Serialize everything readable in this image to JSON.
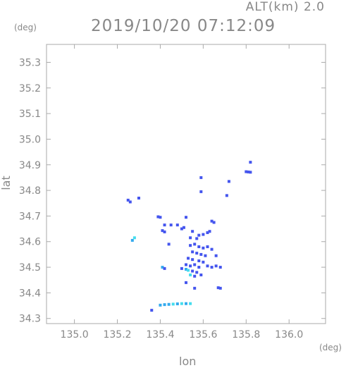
{
  "header": {
    "alt_label": "ALT(km) 2.0",
    "datetime": "2019/10/20 07:12:09",
    "y_unit": "(deg)",
    "x_unit": "(deg)"
  },
  "chart_data": {
    "type": "scatter",
    "title": "2019/10/20 07:12:09",
    "subtitle": "ALT(km) 2.0",
    "xlabel": "lon",
    "ylabel": "lat",
    "xlim": [
      134.87,
      136.17
    ],
    "ylim": [
      34.28,
      35.37
    ],
    "x_ticks": [
      "135.0",
      "135.2",
      "135.4",
      "135.6",
      "135.8",
      "136.0"
    ],
    "y_ticks": [
      "34.3",
      "34.4",
      "34.5",
      "34.6",
      "34.7",
      "34.8",
      "34.9",
      "35.0",
      "35.1",
      "35.2",
      "35.3"
    ],
    "grid": false,
    "colors": {
      "blue": "#4455ee",
      "light_blue": "#33aaee",
      "cyan": "#44ddee",
      "axis": "#aaaaaa"
    },
    "points": [
      {
        "x": 135.8,
        "y": 34.873,
        "c": "blue"
      },
      {
        "x": 135.81,
        "y": 34.872,
        "c": "blue"
      },
      {
        "x": 135.82,
        "y": 34.871,
        "c": "blue"
      },
      {
        "x": 135.82,
        "y": 34.91,
        "c": "blue"
      },
      {
        "x": 135.59,
        "y": 34.85,
        "c": "blue"
      },
      {
        "x": 135.25,
        "y": 34.762,
        "c": "blue"
      },
      {
        "x": 135.26,
        "y": 34.755,
        "c": "blue"
      },
      {
        "x": 135.3,
        "y": 34.77,
        "c": "blue"
      },
      {
        "x": 135.39,
        "y": 34.697,
        "c": "blue"
      },
      {
        "x": 135.4,
        "y": 34.695,
        "c": "blue"
      },
      {
        "x": 135.52,
        "y": 34.695,
        "c": "blue"
      },
      {
        "x": 135.64,
        "y": 34.68,
        "c": "blue"
      },
      {
        "x": 135.65,
        "y": 34.675,
        "c": "blue"
      },
      {
        "x": 135.42,
        "y": 34.665,
        "c": "blue"
      },
      {
        "x": 135.45,
        "y": 34.665,
        "c": "blue"
      },
      {
        "x": 135.48,
        "y": 34.665,
        "c": "blue"
      },
      {
        "x": 135.41,
        "y": 34.643,
        "c": "blue"
      },
      {
        "x": 135.42,
        "y": 34.638,
        "c": "blue"
      },
      {
        "x": 135.5,
        "y": 34.65,
        "c": "blue"
      },
      {
        "x": 135.51,
        "y": 34.655,
        "c": "blue"
      },
      {
        "x": 135.55,
        "y": 34.64,
        "c": "blue"
      },
      {
        "x": 135.58,
        "y": 34.625,
        "c": "blue"
      },
      {
        "x": 135.6,
        "y": 34.628,
        "c": "blue"
      },
      {
        "x": 135.62,
        "y": 34.635,
        "c": "blue"
      },
      {
        "x": 135.63,
        "y": 34.64,
        "c": "blue"
      },
      {
        "x": 135.54,
        "y": 34.615,
        "c": "blue"
      },
      {
        "x": 135.57,
        "y": 34.612,
        "c": "blue"
      },
      {
        "x": 135.27,
        "y": 34.605,
        "c": "light_blue"
      },
      {
        "x": 135.28,
        "y": 34.615,
        "c": "cyan"
      },
      {
        "x": 135.44,
        "y": 34.59,
        "c": "blue"
      },
      {
        "x": 135.54,
        "y": 34.585,
        "c": "blue"
      },
      {
        "x": 135.56,
        "y": 34.59,
        "c": "blue"
      },
      {
        "x": 135.58,
        "y": 34.58,
        "c": "blue"
      },
      {
        "x": 135.6,
        "y": 34.575,
        "c": "blue"
      },
      {
        "x": 135.62,
        "y": 34.58,
        "c": "blue"
      },
      {
        "x": 135.64,
        "y": 34.57,
        "c": "blue"
      },
      {
        "x": 135.55,
        "y": 34.56,
        "c": "blue"
      },
      {
        "x": 135.57,
        "y": 34.555,
        "c": "blue"
      },
      {
        "x": 135.59,
        "y": 34.55,
        "c": "blue"
      },
      {
        "x": 135.61,
        "y": 34.545,
        "c": "blue"
      },
      {
        "x": 135.66,
        "y": 34.545,
        "c": "blue"
      },
      {
        "x": 135.53,
        "y": 34.535,
        "c": "blue"
      },
      {
        "x": 135.55,
        "y": 34.53,
        "c": "blue"
      },
      {
        "x": 135.58,
        "y": 34.525,
        "c": "blue"
      },
      {
        "x": 135.6,
        "y": 34.52,
        "c": "blue"
      },
      {
        "x": 135.52,
        "y": 34.51,
        "c": "blue"
      },
      {
        "x": 135.54,
        "y": 34.505,
        "c": "blue"
      },
      {
        "x": 135.56,
        "y": 34.51,
        "c": "blue"
      },
      {
        "x": 135.58,
        "y": 34.5,
        "c": "blue"
      },
      {
        "x": 135.62,
        "y": 34.505,
        "c": "blue"
      },
      {
        "x": 135.64,
        "y": 34.5,
        "c": "blue"
      },
      {
        "x": 135.66,
        "y": 34.505,
        "c": "blue"
      },
      {
        "x": 135.68,
        "y": 34.5,
        "c": "blue"
      },
      {
        "x": 135.41,
        "y": 34.5,
        "c": "light_blue"
      },
      {
        "x": 135.42,
        "y": 34.495,
        "c": "blue"
      },
      {
        "x": 135.5,
        "y": 34.495,
        "c": "blue"
      },
      {
        "x": 135.52,
        "y": 34.492,
        "c": "light_blue"
      },
      {
        "x": 135.53,
        "y": 34.488,
        "c": "cyan"
      },
      {
        "x": 135.55,
        "y": 34.485,
        "c": "blue"
      },
      {
        "x": 135.57,
        "y": 34.48,
        "c": "blue"
      },
      {
        "x": 135.54,
        "y": 34.47,
        "c": "cyan"
      },
      {
        "x": 135.56,
        "y": 34.465,
        "c": "blue"
      },
      {
        "x": 135.59,
        "y": 34.47,
        "c": "blue"
      },
      {
        "x": 135.52,
        "y": 34.44,
        "c": "blue"
      },
      {
        "x": 135.56,
        "y": 34.418,
        "c": "blue"
      },
      {
        "x": 135.67,
        "y": 34.42,
        "c": "blue"
      },
      {
        "x": 135.68,
        "y": 34.418,
        "c": "blue"
      },
      {
        "x": 135.4,
        "y": 34.352,
        "c": "light_blue"
      },
      {
        "x": 135.42,
        "y": 34.354,
        "c": "light_blue"
      },
      {
        "x": 135.44,
        "y": 34.355,
        "c": "light_blue"
      },
      {
        "x": 135.46,
        "y": 34.356,
        "c": "cyan"
      },
      {
        "x": 135.48,
        "y": 34.357,
        "c": "light_blue"
      },
      {
        "x": 135.5,
        "y": 34.358,
        "c": "cyan"
      },
      {
        "x": 135.52,
        "y": 34.358,
        "c": "light_blue"
      },
      {
        "x": 135.54,
        "y": 34.358,
        "c": "cyan"
      },
      {
        "x": 135.36,
        "y": 34.332,
        "c": "blue"
      },
      {
        "x": 135.71,
        "y": 34.78,
        "c": "blue"
      },
      {
        "x": 135.72,
        "y": 34.835,
        "c": "blue"
      },
      {
        "x": 135.59,
        "y": 34.795,
        "c": "blue"
      }
    ]
  }
}
